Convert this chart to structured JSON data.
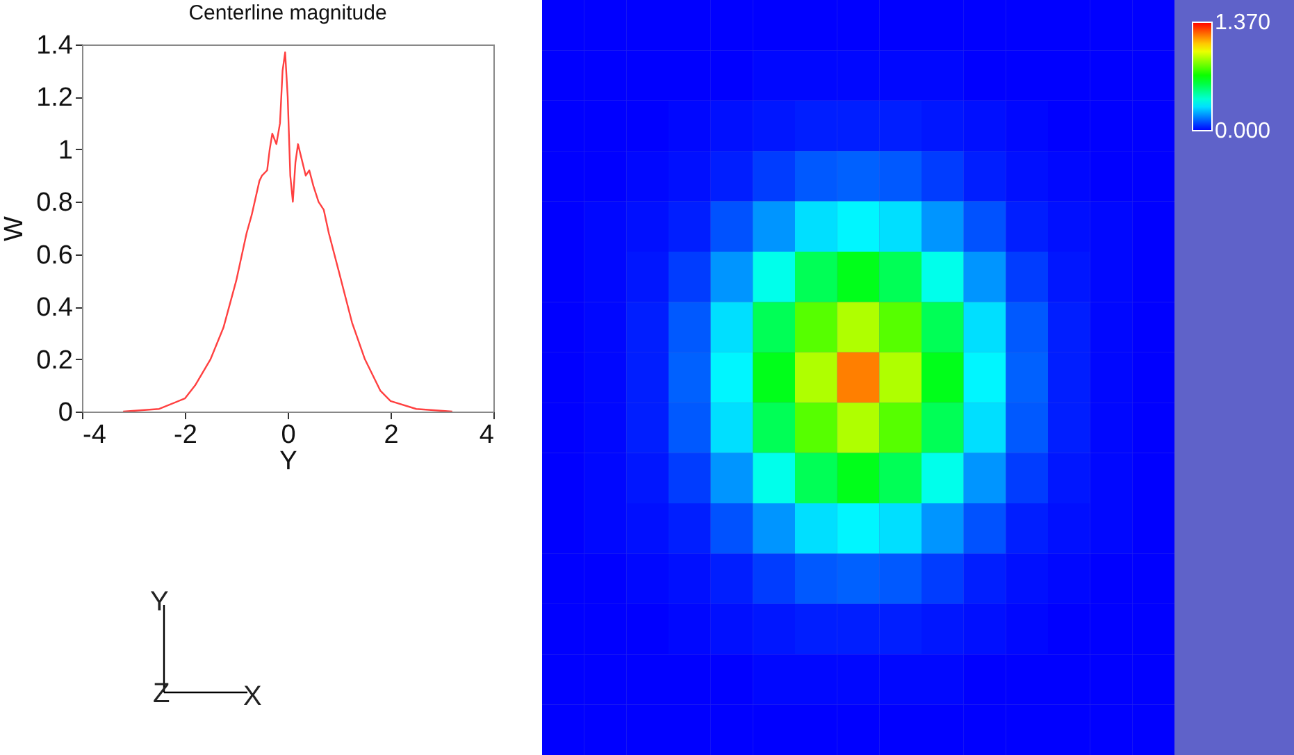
{
  "chart_data": [
    {
      "type": "line",
      "title": "Centerline magnitude",
      "xlabel": "Y",
      "ylabel": "W",
      "xlim": [
        -4,
        4
      ],
      "xticks": [
        -4,
        -2,
        0,
        2,
        4
      ],
      "ylim": [
        0,
        1.4
      ],
      "yticks": [
        0,
        0.2,
        0.4,
        0.6,
        0.8,
        1,
        1.2,
        1.4
      ],
      "grid": false,
      "legend": false,
      "annotations": [
        "Y",
        "Z",
        "X"
      ],
      "series": [
        {
          "color": "#ff4040",
          "x": [
            -3.2,
            -2.5,
            -2,
            -1.8,
            -1.5,
            -1.25,
            -1,
            -0.8,
            -0.7,
            -0.55,
            -0.5,
            -0.4,
            -0.35,
            -0.3,
            -0.22,
            -0.15,
            -0.1,
            -0.05,
            0,
            0.05,
            0.1,
            0.15,
            0.2,
            0.25,
            0.35,
            0.42,
            0.5,
            0.6,
            0.7,
            0.8,
            1,
            1.25,
            1.5,
            1.8,
            2,
            2.5,
            3.2
          ],
          "values": [
            0,
            0.01,
            0.05,
            0.1,
            0.2,
            0.32,
            0.5,
            0.68,
            0.75,
            0.88,
            0.9,
            0.92,
            1,
            1.06,
            1.02,
            1.1,
            1.3,
            1.37,
            1.2,
            0.9,
            0.8,
            0.95,
            1.02,
            0.98,
            0.9,
            0.92,
            0.86,
            0.8,
            0.77,
            0.68,
            0.53,
            0.34,
            0.2,
            0.08,
            0.04,
            0.01,
            0
          ]
        }
      ]
    },
    {
      "type": "heatmap",
      "categories": [
        null,
        null,
        null,
        null,
        null,
        null,
        null,
        null,
        null,
        null,
        null,
        null,
        null,
        null,
        null
      ],
      "y_categories": [
        null,
        null,
        null,
        null,
        null,
        null,
        null,
        null,
        null,
        null,
        null,
        null,
        null,
        null,
        null
      ],
      "clim": [
        0,
        1.37
      ],
      "cticks": [
        {
          "value": 0,
          "label": "0.000"
        },
        {
          "value": 1.37,
          "label": "1.370"
        }
      ],
      "cells": [
        [
          0,
          0,
          0,
          0,
          0,
          0,
          0,
          0,
          0,
          0,
          0,
          0,
          0,
          0,
          0
        ],
        [
          0,
          0,
          0,
          0,
          0,
          0.01,
          0.01,
          0.01,
          0.01,
          0.01,
          0,
          0,
          0,
          0,
          0
        ],
        [
          0,
          0,
          0,
          0.01,
          0.02,
          0.03,
          0.04,
          0.04,
          0.04,
          0.03,
          0.02,
          0.01,
          0,
          0,
          0
        ],
        [
          0,
          0,
          0.01,
          0.02,
          0.04,
          0.08,
          0.12,
          0.13,
          0.12,
          0.08,
          0.04,
          0.02,
          0.01,
          0,
          0
        ],
        [
          0,
          0.01,
          0.02,
          0.04,
          0.11,
          0.2,
          0.3,
          0.33,
          0.3,
          0.2,
          0.11,
          0.04,
          0.02,
          0.01,
          0
        ],
        [
          0,
          0.01,
          0.03,
          0.08,
          0.2,
          0.37,
          0.57,
          0.65,
          0.57,
          0.37,
          0.2,
          0.08,
          0.03,
          0.01,
          0
        ],
        [
          0,
          0.01,
          0.04,
          0.12,
          0.3,
          0.57,
          0.8,
          0.92,
          0.8,
          0.57,
          0.3,
          0.12,
          0.04,
          0.01,
          0
        ],
        [
          0,
          0.01,
          0.04,
          0.13,
          0.33,
          0.65,
          0.92,
          1.2,
          0.92,
          0.65,
          0.33,
          0.13,
          0.04,
          0.01,
          0
        ],
        [
          0,
          0.01,
          0.04,
          0.12,
          0.3,
          0.57,
          0.8,
          0.92,
          0.8,
          0.57,
          0.3,
          0.12,
          0.04,
          0.01,
          0
        ],
        [
          0,
          0.01,
          0.03,
          0.08,
          0.2,
          0.37,
          0.57,
          0.65,
          0.57,
          0.37,
          0.2,
          0.08,
          0.03,
          0.01,
          0
        ],
        [
          0,
          0.01,
          0.02,
          0.04,
          0.11,
          0.2,
          0.3,
          0.33,
          0.3,
          0.2,
          0.11,
          0.04,
          0.02,
          0.01,
          0
        ],
        [
          0,
          0,
          0.01,
          0.02,
          0.04,
          0.08,
          0.12,
          0.13,
          0.12,
          0.08,
          0.04,
          0.02,
          0.01,
          0,
          0
        ],
        [
          0,
          0,
          0,
          0.01,
          0.02,
          0.03,
          0.04,
          0.04,
          0.04,
          0.03,
          0.02,
          0.01,
          0,
          0,
          0
        ],
        [
          0,
          0,
          0,
          0,
          0,
          0.01,
          0.01,
          0.01,
          0.01,
          0.01,
          0,
          0,
          0,
          0,
          0
        ],
        [
          0,
          0,
          0,
          0,
          0,
          0,
          0,
          0,
          0,
          0,
          0,
          0,
          0,
          0,
          0
        ]
      ]
    }
  ]
}
